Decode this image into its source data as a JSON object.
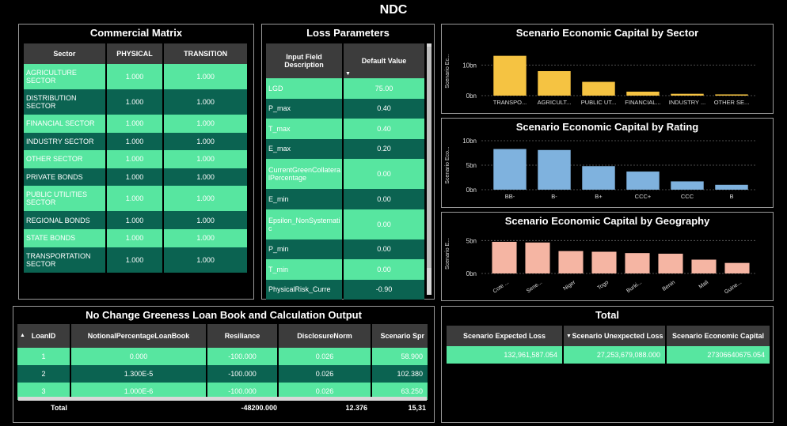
{
  "page": {
    "title": "NDC"
  },
  "commercial": {
    "title": "Commercial Matrix",
    "headers": [
      "Sector",
      "PHYSICAL",
      "TRANSITION"
    ],
    "rows": [
      {
        "sector": "AGRICULTURE SECTOR",
        "physical": "1.000",
        "transition": "1.000"
      },
      {
        "sector": "DISTRIBUTION SECTOR",
        "physical": "1.000",
        "transition": "1.000"
      },
      {
        "sector": "FINANCIAL SECTOR",
        "physical": "1.000",
        "transition": "1.000"
      },
      {
        "sector": "INDUSTRY SECTOR",
        "physical": "1.000",
        "transition": "1.000"
      },
      {
        "sector": "OTHER SECTOR",
        "physical": "1.000",
        "transition": "1.000"
      },
      {
        "sector": "PRIVATE BONDS",
        "physical": "1.000",
        "transition": "1.000"
      },
      {
        "sector": "PUBLIC UTILITIES SECTOR",
        "physical": "1.000",
        "transition": "1.000"
      },
      {
        "sector": "REGIONAL BONDS",
        "physical": "1.000",
        "transition": "1.000"
      },
      {
        "sector": "STATE BONDS",
        "physical": "1.000",
        "transition": "1.000"
      },
      {
        "sector": "TRANSPORTATION SECTOR",
        "physical": "1.000",
        "transition": "1.000"
      }
    ]
  },
  "loss": {
    "title": "Loss Parameters",
    "headers": [
      "Input Field Description",
      "Default Value"
    ],
    "rows": [
      {
        "field": "LGD",
        "value": "75.00"
      },
      {
        "field": "P_max",
        "value": "0.40"
      },
      {
        "field": "T_max",
        "value": "0.40"
      },
      {
        "field": "E_max",
        "value": "0.20"
      },
      {
        "field": "CurrentGreenCollateralPercentage",
        "value": "0.00"
      },
      {
        "field": "E_min",
        "value": "0.00"
      },
      {
        "field": "Epsilon_NonSystematic",
        "value": "0.00"
      },
      {
        "field": "P_min",
        "value": "0.00"
      },
      {
        "field": "T_min",
        "value": "0.00"
      },
      {
        "field": "PhysicalRisk_Curre",
        "value": "-0.90"
      }
    ]
  },
  "loanbook": {
    "title": "No Change Greeness Loan Book and Calculation Output",
    "headers": [
      "LoanID",
      "NotionalPercentageLoanBook",
      "Resiliance",
      "DisclosureNorm",
      "Scenario Spr"
    ],
    "rows": [
      {
        "id": "1",
        "notional": "0.000",
        "resiliance": "-100.000",
        "disclosure": "0.026",
        "spread": "58.900"
      },
      {
        "id": "2",
        "notional": "1.300E-5",
        "resiliance": "-100.000",
        "disclosure": "0.026",
        "spread": "102.380"
      },
      {
        "id": "3",
        "notional": "1.000E-6",
        "resiliance": "-100.000",
        "disclosure": "0.026",
        "spread": "63.250"
      }
    ],
    "total": {
      "label": "Total",
      "resiliance": "-48200.000",
      "disclosure": "12.376",
      "spread": "15,31"
    }
  },
  "total": {
    "title": "Total",
    "headers": [
      "Scenario Expected Loss",
      "Scenario Unexpected Loss",
      "Scenario Economic Capital"
    ],
    "row": {
      "el": "132,961,587.054",
      "ul": "27,253,679,088.000",
      "ec": "27306640675.054"
    }
  },
  "chart_data": [
    {
      "type": "bar",
      "title": "Scenario Economic Capital by Sector",
      "ylabel": "Scenario Ec...",
      "categories": [
        "TRANSPO...",
        "AGRICULT...",
        "PUBLIC UT...",
        "FINANCIAL...",
        "INDUSTRY ...",
        "OTHER SE..."
      ],
      "values": [
        13,
        8,
        4.5,
        1.3,
        0.6,
        0.4
      ],
      "ylim": [
        0,
        16
      ],
      "yticks": [
        {
          "v": 0,
          "label": "0bn"
        },
        {
          "v": 10,
          "label": "10bn"
        }
      ],
      "color": "#f5c342"
    },
    {
      "type": "bar",
      "title": "Scenario Economic Capital by Rating",
      "ylabel": "Scenario Eco...",
      "categories": [
        "BB-",
        "B-",
        "B+",
        "CCC+",
        "CCC",
        "B"
      ],
      "values": [
        8.3,
        8.1,
        4.8,
        3.7,
        1.7,
        1.0
      ],
      "ylim": [
        0,
        10
      ],
      "yticks": [
        {
          "v": 0,
          "label": "0bn"
        },
        {
          "v": 5,
          "label": "5bn"
        },
        {
          "v": 10,
          "label": "10bn"
        }
      ],
      "color": "#7fb2de"
    },
    {
      "type": "bar",
      "title": "Scenario Economic Capital by Geography",
      "ylabel": "Scenario E...",
      "categories": [
        "Cote ...",
        "Sene...",
        "Niger",
        "Togo",
        "Burki...",
        "Benin",
        "Mali",
        "Guine..."
      ],
      "values": [
        4.8,
        4.7,
        3.4,
        3.3,
        3.1,
        3.0,
        2.1,
        1.6
      ],
      "ylim": [
        0,
        6
      ],
      "yticks": [
        {
          "v": 0,
          "label": "0bn"
        },
        {
          "v": 5,
          "label": "5bn"
        }
      ],
      "color": "#f5b5a3"
    }
  ]
}
